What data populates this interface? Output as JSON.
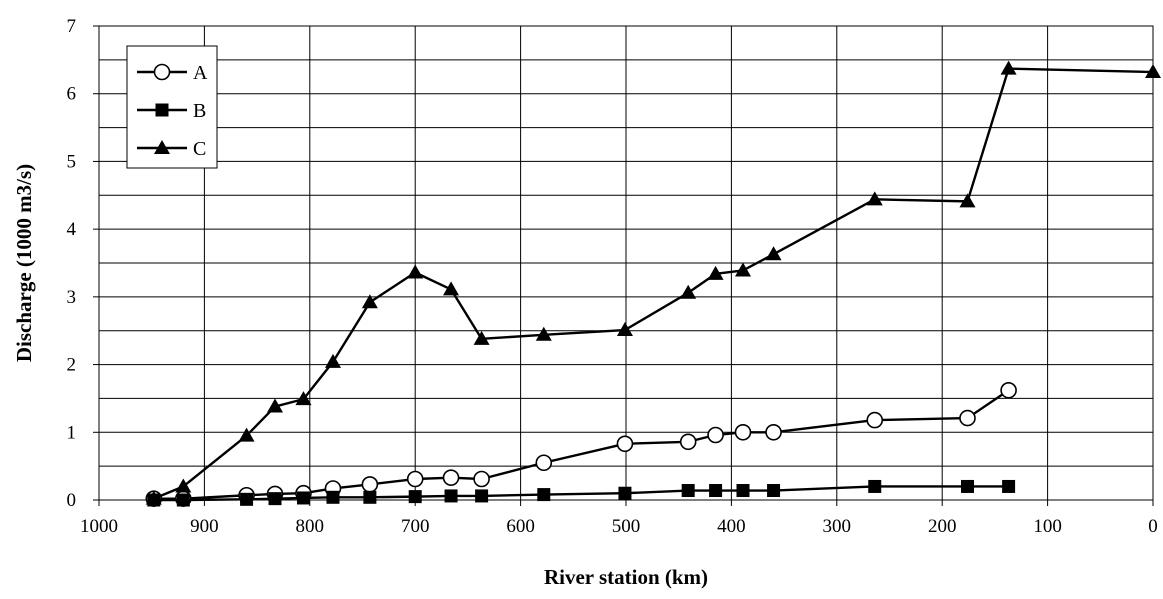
{
  "chart_data": {
    "type": "line",
    "title": "",
    "xlabel": "River station (km)",
    "ylabel": "Discharge (1000 m3/s)",
    "xlim": [
      1000,
      0
    ],
    "ylim": [
      0,
      7
    ],
    "x_reversed": true,
    "x_ticks": [
      "1000",
      "900",
      "800",
      "700",
      "600",
      "500",
      "400",
      "300",
      "200",
      "100",
      "0"
    ],
    "y_ticks": [
      "0",
      "1",
      "2",
      "3",
      "4",
      "5",
      "6",
      "7"
    ],
    "grid": true,
    "legend_position": "top-left",
    "series": [
      {
        "name": "A",
        "marker": "circle-open",
        "x": [
          948,
          920,
          860,
          833,
          806,
          778,
          743,
          700,
          666,
          637,
          578,
          501,
          441,
          415,
          389,
          360,
          264,
          176,
          137
        ],
        "y": [
          0.02,
          0.02,
          0.07,
          0.09,
          0.1,
          0.17,
          0.23,
          0.31,
          0.33,
          0.31,
          0.55,
          0.83,
          0.86,
          0.96,
          1.0,
          1.0,
          1.18,
          1.21,
          1.62
        ]
      },
      {
        "name": "B",
        "marker": "square-filled",
        "x": [
          948,
          920,
          860,
          833,
          806,
          778,
          743,
          700,
          666,
          637,
          578,
          501,
          441,
          415,
          389,
          360,
          264,
          176,
          137
        ],
        "y": [
          0.0,
          0.0,
          0.01,
          0.02,
          0.03,
          0.04,
          0.04,
          0.05,
          0.06,
          0.06,
          0.08,
          0.1,
          0.14,
          0.14,
          0.14,
          0.14,
          0.2,
          0.2,
          0.2
        ]
      },
      {
        "name": "C",
        "marker": "triangle-filled",
        "x": [
          948,
          920,
          860,
          833,
          806,
          778,
          743,
          700,
          666,
          637,
          578,
          501,
          441,
          415,
          389,
          360,
          264,
          176,
          137,
          0
        ],
        "y": [
          0.02,
          0.2,
          0.95,
          1.38,
          1.49,
          2.04,
          2.92,
          3.36,
          3.11,
          2.38,
          2.44,
          2.51,
          3.06,
          3.34,
          3.39,
          3.63,
          4.44,
          4.41,
          6.37,
          6.32
        ]
      }
    ]
  }
}
